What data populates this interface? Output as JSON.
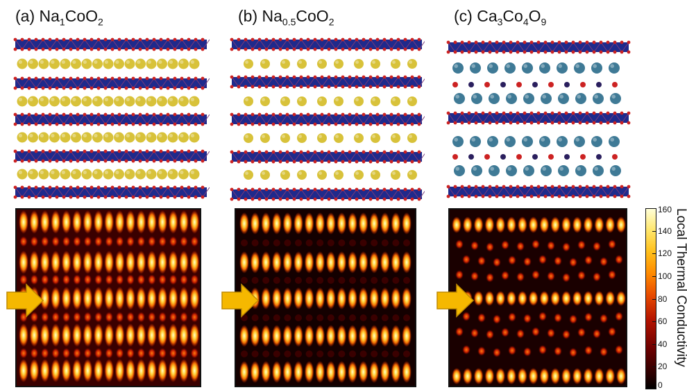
{
  "panels": [
    {
      "letter": "(a)",
      "formula": [
        {
          "t": "Na"
        },
        {
          "s": "1"
        },
        {
          "t": "CoO"
        },
        {
          "s": "2"
        }
      ]
    },
    {
      "letter": "(b)",
      "formula": [
        {
          "t": "Na"
        },
        {
          "s": "0.5"
        },
        {
          "t": "CoO"
        },
        {
          "s": "2"
        }
      ]
    },
    {
      "letter": "(c)",
      "formula": [
        {
          "t": "Ca"
        },
        {
          "s": "3"
        },
        {
          "t": "Co"
        },
        {
          "s": "4"
        },
        {
          "t": "O"
        },
        {
          "s": "9"
        }
      ]
    }
  ],
  "colorbar": {
    "label": "Local Thermal Conductivity",
    "ticks": [
      "160",
      "140",
      "120",
      "100",
      "80",
      "60",
      "40",
      "20",
      "0"
    ],
    "min": 0,
    "max": 160
  },
  "colors": {
    "cobalt_layer": "#1f2a8c",
    "oxygen": "#cc2222",
    "sodium": "#d8c23a",
    "calcium": "#3f7a96",
    "cobalt_atom": "#2a1f5e",
    "arrow": "#f5b800"
  }
}
